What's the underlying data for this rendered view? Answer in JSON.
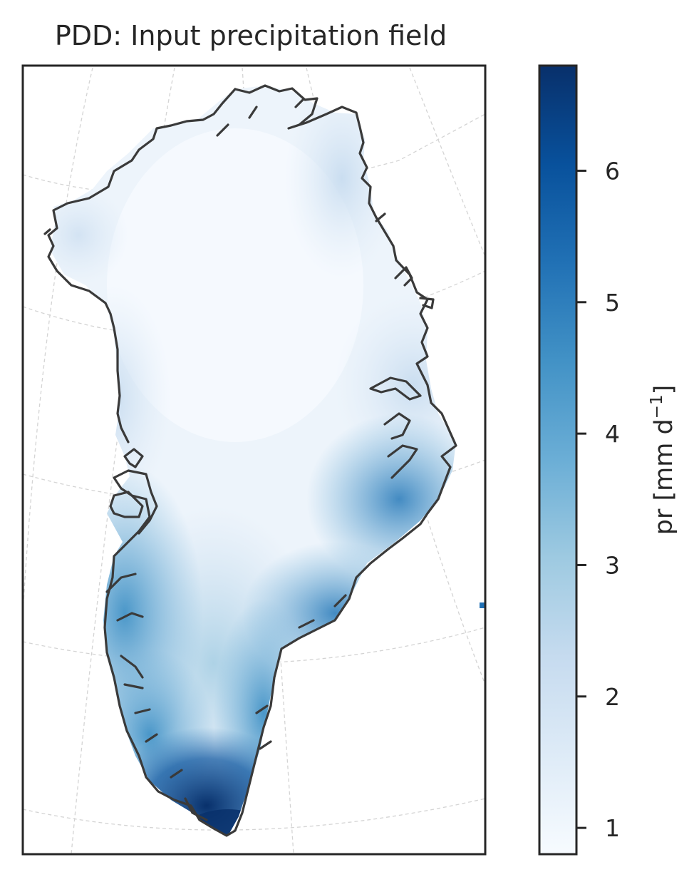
{
  "chart_data": {
    "type": "heatmap",
    "title": "PDD: Input precipitation field",
    "colorbar": {
      "label_main": "pr [mm d",
      "label_sup": "−1",
      "label_close": "]",
      "range": [
        0.8,
        6.8
      ],
      "ticks": [
        1,
        2,
        3,
        4,
        5,
        6
      ],
      "tick_labels": [
        "1",
        "2",
        "3",
        "4",
        "5",
        "6"
      ],
      "colormap": "Blues",
      "colormap_stops": [
        "#f7fbff",
        "#deebf7",
        "#c6dbef",
        "#9ecae1",
        "#6baed6",
        "#4292c6",
        "#2171b5",
        "#08519c",
        "#08306b"
      ]
    },
    "map": {
      "region": "Greenland",
      "projection": "polar stereographic",
      "graticule": "dashed, light grey",
      "coastline_color": "#3a3a3a",
      "field_pattern": {
        "low_value_interior": 0.9,
        "north_east_margin": 2.0,
        "west_coast": 4.0,
        "south_east_coast": 4.5,
        "southern_tip": 6.5
      }
    },
    "grid": true,
    "legend": "colorbar-right"
  }
}
